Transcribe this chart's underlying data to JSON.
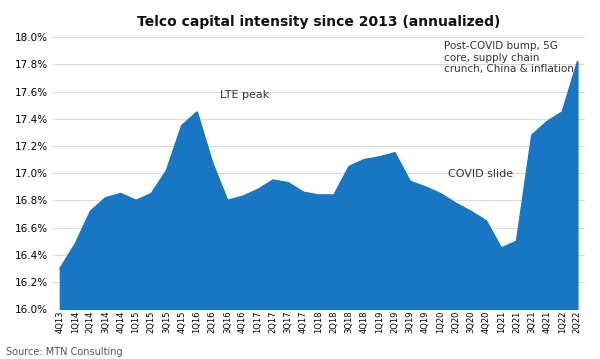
{
  "title": "Telco capital intensity since 2013 (annualized)",
  "source": "Source: MTN Consulting",
  "fill_color": "#1777c4",
  "background_color": "#ffffff",
  "ylim": [
    16.0,
    18.0
  ],
  "ytick_step": 0.2,
  "labels": [
    "4Q13",
    "1Q14",
    "2Q14",
    "3Q14",
    "4Q14",
    "1Q15",
    "2Q15",
    "3Q15",
    "4Q15",
    "1Q16",
    "2Q16",
    "3Q16",
    "4Q16",
    "1Q17",
    "2Q17",
    "3Q17",
    "4Q17",
    "1Q18",
    "2Q18",
    "3Q18",
    "4Q18",
    "1Q19",
    "2Q19",
    "3Q19",
    "4Q19",
    "1Q20",
    "2Q20",
    "3Q20",
    "4Q20",
    "1Q21",
    "2Q21",
    "3Q21",
    "4Q21",
    "1Q22",
    "2Q22"
  ],
  "values": [
    16.3,
    16.48,
    16.72,
    16.82,
    16.85,
    16.8,
    16.85,
    17.02,
    17.35,
    17.45,
    17.08,
    16.8,
    16.83,
    16.88,
    16.95,
    16.93,
    16.86,
    16.84,
    16.84,
    17.05,
    17.1,
    17.12,
    17.15,
    16.94,
    16.9,
    16.85,
    16.78,
    16.72,
    16.65,
    16.45,
    16.5,
    17.28,
    17.38,
    17.45,
    17.82
  ],
  "annotation_lte_text": "LTE peak",
  "annotation_lte_xi": 9,
  "annotation_covid_text": "COVID slide",
  "annotation_covid_xi": 25,
  "annotation_postcovid_text": "Post-COVID bump, 5G\ncore, supply chain\ncrunch, China & inflation"
}
